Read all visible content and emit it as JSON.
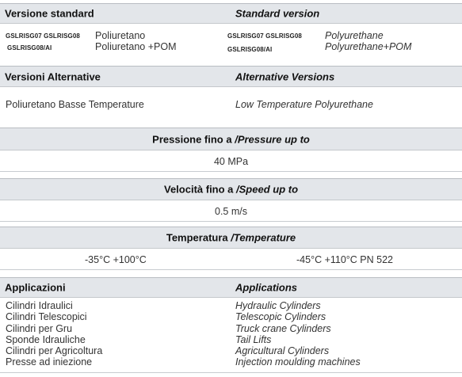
{
  "standard": {
    "title_it": "Versione standard",
    "title_en": "Standard version",
    "rows": [
      {
        "codes": "GSLRISG07 GSLRISG08",
        "material_it": "Poliuretano",
        "material_en": "Polyurethane"
      },
      {
        "codes": "GSLRISG08/AI",
        "material_it": "Poliuretano +POM",
        "material_en": "Polyurethane+POM"
      }
    ]
  },
  "alternative": {
    "title_it": "Versioni Alternative",
    "title_en": "Alternative Versions",
    "value_it": "Poliuretano Basse Temperature",
    "value_en": "Low Temperature Polyurethane"
  },
  "pressure": {
    "label_it": "Pressione fino a ",
    "label_en": "/Pressure up to",
    "value": "40 MPa"
  },
  "speed": {
    "label_it": "Velocità fino a ",
    "label_en": "/Speed up to",
    "value": "0.5 m/s"
  },
  "temperature": {
    "label_it": "Temperatura ",
    "label_en": "/Temperature",
    "value_left": "-35°C +100°C",
    "value_right": "-45°C +110°C  PN 522"
  },
  "applications": {
    "title_it": "Applicazioni",
    "title_en": "Applications",
    "items_it": [
      "Cilindri Idraulici",
      "Cilindri Telescopici",
      "Cilindri per Gru",
      "Sponde Idrauliche",
      "Cilindri per Agricoltura",
      "Presse ad iniezione"
    ],
    "items_en": [
      "Hydraulic Cylinders",
      "Telescopic Cylinders",
      "Truck crane Cylinders",
      "Tail Lifts",
      "Agricultural Cylinders",
      "Injection moulding machines"
    ]
  }
}
